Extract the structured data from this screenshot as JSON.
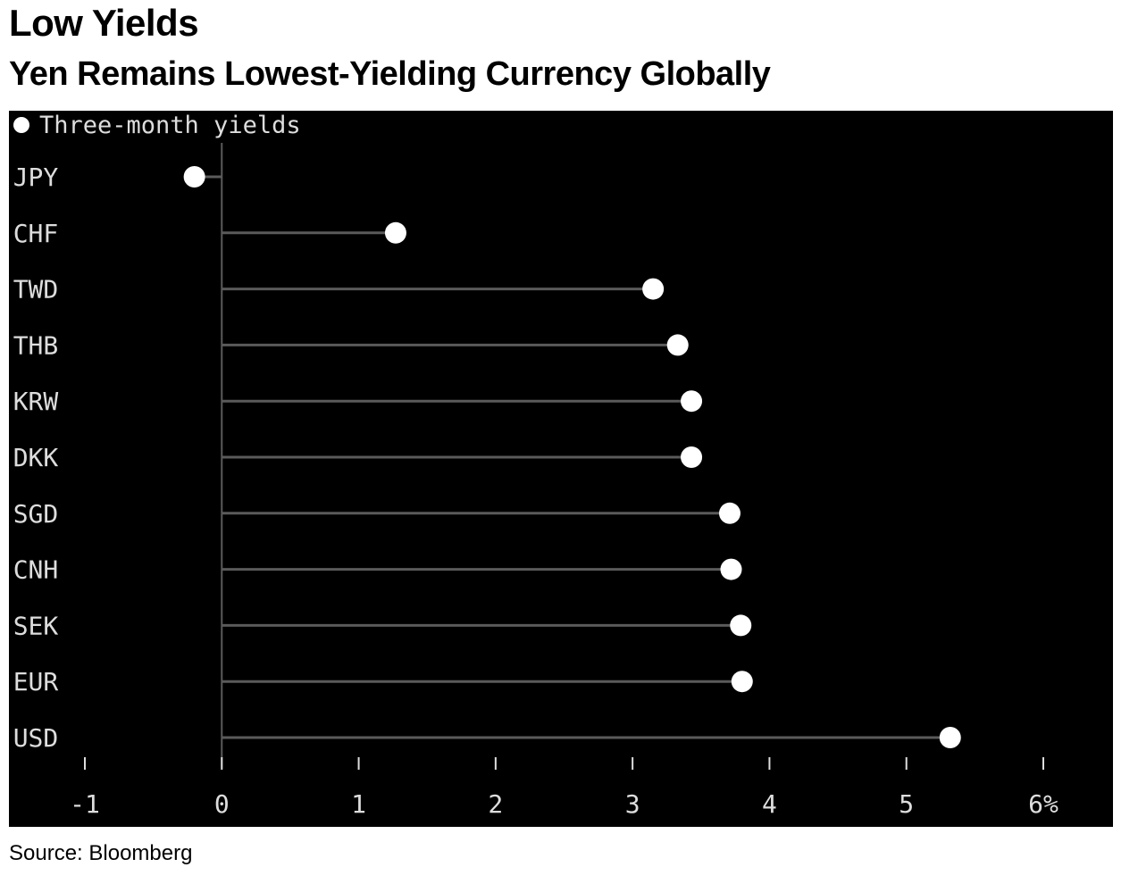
{
  "header": {
    "title": "Low Yields",
    "subtitle": "Yen Remains Lowest-Yielding Currency Globally"
  },
  "footer": {
    "source": "Source: Bloomberg"
  },
  "colors": {
    "background": "#000000",
    "marker": "#ffffff",
    "stem": "#5a5a5a",
    "text": "#dddddd"
  },
  "chart_data": {
    "type": "scatter",
    "style": "lollipop",
    "orientation": "horizontal",
    "title": "Low Yields",
    "subtitle": "Yen Remains Lowest-Yielding Currency Globally",
    "legend": {
      "position": "top-left",
      "entries": [
        "Three-month yields"
      ]
    },
    "categories": [
      "JPY",
      "CHF",
      "TWD",
      "THB",
      "KRW",
      "DKK",
      "SGD",
      "CNH",
      "SEK",
      "EUR",
      "USD"
    ],
    "series": [
      {
        "name": "Three-month yields",
        "values": [
          -0.2,
          1.27,
          3.15,
          3.33,
          3.43,
          3.43,
          3.71,
          3.72,
          3.79,
          3.8,
          5.32
        ]
      }
    ],
    "xlim": [
      -1,
      6
    ],
    "xticks": [
      -1,
      0,
      1,
      2,
      3,
      4,
      5,
      6
    ],
    "xtick_labels": [
      "-1",
      "0",
      "1",
      "2",
      "3",
      "4",
      "5",
      "6%"
    ],
    "grid": false,
    "source": "Source: Bloomberg"
  }
}
